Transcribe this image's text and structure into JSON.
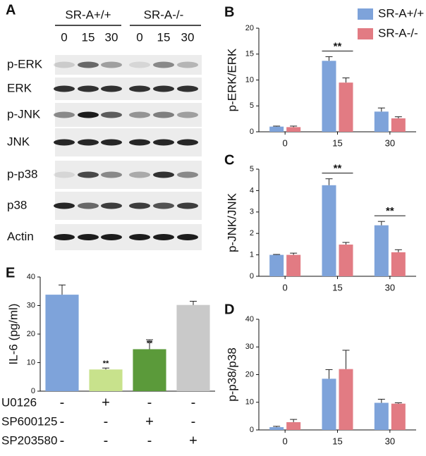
{
  "blot": {
    "label": "A",
    "groups": [
      "SR-A+/+",
      "SR-A-/-"
    ],
    "lanes": [
      "0",
      "15",
      "30",
      "0",
      "15",
      "30"
    ],
    "rows": [
      "p-ERK",
      "ERK",
      "p-JNK",
      "JNK",
      "p-p38",
      "p38",
      "Actin"
    ]
  },
  "chart_data": [
    {
      "type": "bar",
      "label": "B",
      "ylabel": "p-ERK/ERK",
      "categories": [
        "0",
        "15",
        "30"
      ],
      "series": [
        {
          "name": "SR-A+/+",
          "color": "#7ea3da",
          "values": [
            1,
            13.7,
            3.9
          ],
          "errors": [
            0.1,
            0.8,
            0.7
          ]
        },
        {
          "name": "SR-A-/-",
          "color": "#e27b83",
          "values": [
            0.9,
            9.5,
            2.6
          ],
          "errors": [
            0.2,
            0.9,
            0.3
          ]
        }
      ],
      "significance": [
        null,
        "**",
        null
      ],
      "ylim": [
        0,
        20
      ],
      "yticks": [
        0,
        5,
        10,
        15,
        20
      ]
    },
    {
      "type": "bar",
      "label": "C",
      "ylabel": "p-JNK/JNK",
      "categories": [
        "0",
        "15",
        "30"
      ],
      "series": [
        {
          "color": "#7ea3da",
          "values": [
            1,
            4.25,
            2.38
          ],
          "errors": [
            0.02,
            0.3,
            0.18
          ]
        },
        {
          "color": "#e27b83",
          "values": [
            1.0,
            1.48,
            1.12
          ],
          "errors": [
            0.08,
            0.1,
            0.12
          ]
        }
      ],
      "significance": [
        null,
        "**",
        "**"
      ],
      "ylim": [
        0,
        5
      ],
      "yticks": [
        0,
        1,
        2,
        3,
        4,
        5
      ]
    },
    {
      "type": "bar",
      "label": "D",
      "ylabel": "p-p38/p38",
      "categories": [
        "0",
        "15",
        "30"
      ],
      "series": [
        {
          "color": "#7ea3da",
          "values": [
            1,
            18.5,
            9.8
          ],
          "errors": [
            0.3,
            3.3,
            1.3
          ]
        },
        {
          "color": "#e27b83",
          "values": [
            2.8,
            22,
            9.5
          ],
          "errors": [
            1,
            6.8,
            0.3
          ]
        }
      ],
      "significance": [
        null,
        null,
        null
      ],
      "ylim": [
        0,
        40
      ],
      "yticks": [
        0,
        10,
        20,
        30,
        40
      ]
    },
    {
      "type": "simplebar",
      "label": "E",
      "ylabel": "IL-6 (pg/ml)",
      "values": [
        33.8,
        7.6,
        14.7,
        30.2
      ],
      "errors": [
        3.4,
        0.5,
        3.3,
        1.3
      ],
      "colors": [
        "#7ea3da",
        "#c8e28c",
        "#5b9a3a",
        "#c9c9c9"
      ],
      "significance": [
        null,
        "**",
        "**",
        null
      ],
      "ylim": [
        0,
        40
      ],
      "yticks": [
        0,
        10,
        20,
        30,
        40
      ],
      "treatments": [
        {
          "name": "U0126",
          "marks": [
            "-",
            "+",
            "-",
            "-"
          ]
        },
        {
          "name": "SP600125",
          "marks": [
            "-",
            "-",
            "+",
            "-"
          ]
        },
        {
          "name": "SP203580",
          "marks": [
            "-",
            "-",
            "-",
            "+"
          ]
        }
      ]
    }
  ]
}
